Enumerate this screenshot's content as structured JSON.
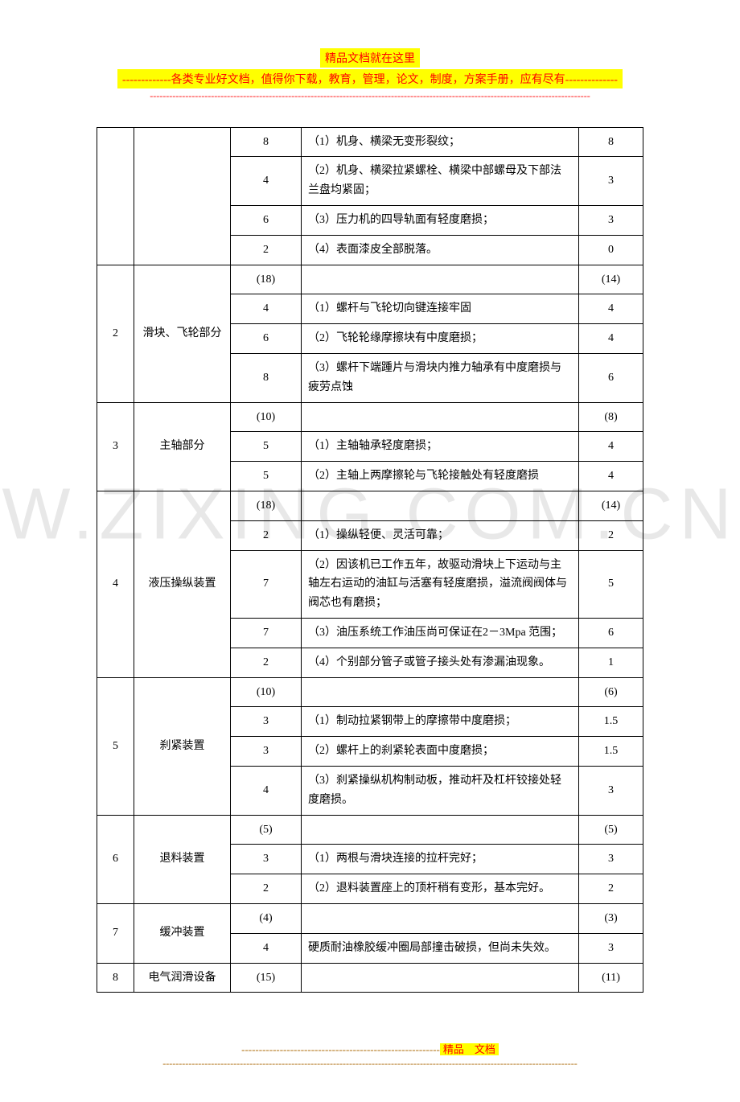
{
  "header": {
    "line1": "精品文档就在这里",
    "line2_prefix": "-------------",
    "line2_text": "各类专业好文档，值得你下载，教育，管理，论文，制度，方案手册，应有尽有",
    "line2_suffix": "--------------",
    "dashes": "-----------------------------------------------------------------------------------------------------------------------------------------"
  },
  "watermark": "W.ZIXING.COM.CN",
  "table": {
    "colors": {
      "border": "#000000",
      "text": "#000000",
      "header_bg": "#ffff00",
      "header_text": "#ff0000"
    },
    "rows": [
      {
        "num": "",
        "part": "",
        "score1": "8",
        "desc": "（1）机身、横梁无变形裂纹；",
        "score2": "8"
      },
      {
        "num": "",
        "part": "",
        "score1": "4",
        "desc": "（2）机身、横梁拉紧螺栓、横梁中部螺母及下部法兰盘均紧固；",
        "score2": "3"
      },
      {
        "num": "",
        "part": "",
        "score1": "6",
        "desc": "（3）压力机的四导轨面有轻度磨损；",
        "score2": "3"
      },
      {
        "num": "",
        "part": "",
        "score1": "2",
        "desc": "（4）表面漆皮全部脱落。",
        "score2": "0"
      },
      {
        "num": "2",
        "part": "滑块、飞轮部分",
        "score1": "(18)",
        "desc": "",
        "score2": "(14)",
        "subtotal": true,
        "rowspan": 4
      },
      {
        "score1": "4",
        "desc": "（1）螺杆与飞轮切向键连接牢固",
        "score2": "4"
      },
      {
        "score1": "6",
        "desc": "（2）飞轮轮缘摩擦块有中度磨损；",
        "score2": "4"
      },
      {
        "score1": "8",
        "desc": "（3）螺杆下端踵片与滑块内推力轴承有中度磨损与疲劳点蚀",
        "score2": "6"
      },
      {
        "num": "3",
        "part": "主轴部分",
        "score1": "(10)",
        "desc": "",
        "score2": "(8)",
        "subtotal": true,
        "rowspan": 3
      },
      {
        "score1": "5",
        "desc": "（1）主轴轴承轻度磨损；",
        "score2": "4"
      },
      {
        "score1": "5",
        "desc": "（2）主轴上两摩擦轮与飞轮接触处有轻度磨损",
        "score2": "4"
      },
      {
        "num": "4",
        "part": "液压操纵装置",
        "score1": "(18)",
        "desc": "",
        "score2": "(14)",
        "subtotal": true,
        "rowspan": 5
      },
      {
        "score1": "2",
        "desc": "（1）操纵轻便、灵活可靠；",
        "score2": "2"
      },
      {
        "score1": "7",
        "desc": "（2）因该机已工作五年，故驱动滑块上下运动与主轴左右运动的油缸与活塞有轻度磨损，溢流阀阀体与阀芯也有磨损；",
        "score2": "5"
      },
      {
        "score1": "7",
        "desc": "（3）油压系统工作油压尚可保证在2－3Mpa 范围；",
        "score2": "6"
      },
      {
        "score1": "2",
        "desc": "（4）个别部分管子或管子接头处有渗漏油现象。",
        "score2": "1"
      },
      {
        "num": "5",
        "part": "刹紧装置",
        "score1": "(10)",
        "desc": "",
        "score2": "(6)",
        "subtotal": true,
        "rowspan": 4
      },
      {
        "score1": "3",
        "desc": "（1）制动拉紧钢带上的摩擦带中度磨损；",
        "score2": "1.5"
      },
      {
        "score1": "3",
        "desc": "（2）螺杆上的刹紧轮表面中度磨损；",
        "score2": "1.5"
      },
      {
        "score1": "4",
        "desc": "（3）刹紧操纵机构制动板，推动杆及杠杆铰接处轻度磨损。",
        "score2": "3"
      },
      {
        "num": "6",
        "part": "退料装置",
        "score1": "(5)",
        "desc": "",
        "score2": "(5)",
        "subtotal": true,
        "rowspan": 3
      },
      {
        "score1": "3",
        "desc": "（1）两根与滑块连接的拉杆完好；",
        "score2": "3"
      },
      {
        "score1": "2",
        "desc": "（2）退料装置座上的顶杆稍有变形，基本完好。",
        "score2": "2"
      },
      {
        "num": "7",
        "part": "缓冲装置",
        "score1": "(4)",
        "desc": "",
        "score2": "(3)",
        "subtotal": true,
        "rowspan": 2
      },
      {
        "score1": "4",
        "desc": "硬质耐油橡胶缓冲圈局部撞击破损，但尚未失效。",
        "score2": "3"
      },
      {
        "num": "8",
        "part": "电气润滑设备",
        "score1": "(15)",
        "desc": "",
        "score2": "(11)",
        "subtotal": true,
        "rowspan": 1
      }
    ]
  },
  "footer": {
    "dashes1": "---------------------------------------------------------",
    "highlight": "精品　文档",
    "dashes2": "---------------------------------------------------------------------------------------------------------------------------------"
  }
}
